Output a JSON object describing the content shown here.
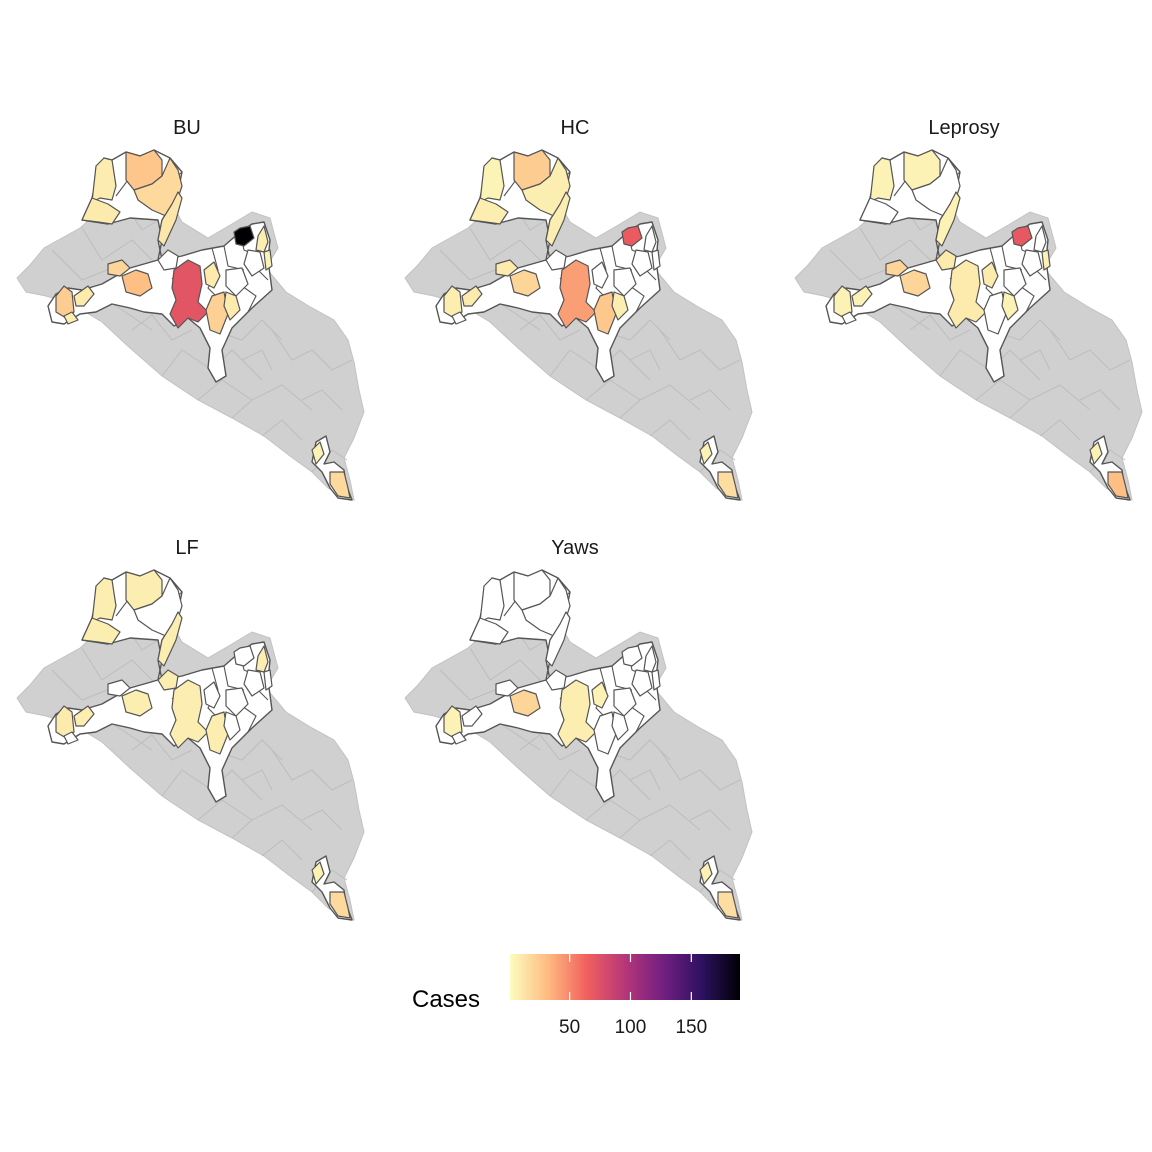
{
  "legend": {
    "title": "Cases",
    "ticks": [
      50,
      100,
      150
    ],
    "range": [
      1,
      190
    ],
    "palette": "magma-reversed",
    "colors": [
      "#fcfdbf",
      "#feba80",
      "#f1605d",
      "#b63679",
      "#721f81",
      "#2d1160",
      "#000004"
    ],
    "na_color": "#d0d0d0",
    "zero_color": "#ffffff",
    "border_color": "#555555"
  },
  "panels": [
    {
      "title": "BU",
      "districts": [
        {
          "id": "nw-top-a",
          "cases": 9
        },
        {
          "id": "nw-top-b",
          "cases": 27
        },
        {
          "id": "nw-top-c",
          "cases": 18
        },
        {
          "id": "nw-left",
          "cases": 10
        },
        {
          "id": "nw-strip",
          "cases": 12
        },
        {
          "id": "center-small",
          "cases": 0
        },
        {
          "id": "center-left",
          "cases": 30
        },
        {
          "id": "center-main",
          "cases": 72
        },
        {
          "id": "center-right",
          "cases": 10
        },
        {
          "id": "ne-top",
          "cases": 190
        },
        {
          "id": "ne-mid",
          "cases": 8
        },
        {
          "id": "ne-right",
          "cases": 5
        },
        {
          "id": "east-a",
          "cases": 0
        },
        {
          "id": "east-b",
          "cases": 0
        },
        {
          "id": "south-a",
          "cases": 22
        },
        {
          "id": "south-b",
          "cases": 10
        },
        {
          "id": "coast-a",
          "cases": 24
        },
        {
          "id": "coast-b",
          "cases": 10
        },
        {
          "id": "coast-c",
          "cases": 8
        },
        {
          "id": "west-a",
          "cases": 20
        },
        {
          "id": "se-a",
          "cases": 6
        },
        {
          "id": "se-b",
          "cases": 18
        }
      ]
    },
    {
      "title": "HC",
      "districts": [
        {
          "id": "nw-top-a",
          "cases": 5
        },
        {
          "id": "nw-top-b",
          "cases": 24
        },
        {
          "id": "nw-top-c",
          "cases": 8
        },
        {
          "id": "nw-left",
          "cases": 8
        },
        {
          "id": "nw-strip",
          "cases": 8
        },
        {
          "id": "center-small",
          "cases": 0
        },
        {
          "id": "center-left",
          "cases": 20
        },
        {
          "id": "center-main",
          "cases": 42
        },
        {
          "id": "center-right",
          "cases": 0
        },
        {
          "id": "ne-top",
          "cases": 68
        },
        {
          "id": "ne-mid",
          "cases": 0
        },
        {
          "id": "ne-right",
          "cases": 0
        },
        {
          "id": "east-a",
          "cases": 0
        },
        {
          "id": "east-b",
          "cases": 0
        },
        {
          "id": "south-a",
          "cases": 26
        },
        {
          "id": "south-b",
          "cases": 8
        },
        {
          "id": "coast-a",
          "cases": 8
        },
        {
          "id": "coast-b",
          "cases": 10
        },
        {
          "id": "coast-c",
          "cases": 0
        },
        {
          "id": "west-a",
          "cases": 10
        },
        {
          "id": "se-a",
          "cases": 6
        },
        {
          "id": "se-b",
          "cases": 16
        }
      ]
    },
    {
      "title": "Leprosy",
      "districts": [
        {
          "id": "nw-top-a",
          "cases": 6
        },
        {
          "id": "nw-top-b",
          "cases": 6
        },
        {
          "id": "nw-top-c",
          "cases": 0
        },
        {
          "id": "nw-left",
          "cases": 0
        },
        {
          "id": "nw-strip",
          "cases": 6
        },
        {
          "id": "center-small",
          "cases": 10
        },
        {
          "id": "center-left",
          "cases": 20
        },
        {
          "id": "center-main",
          "cases": 10
        },
        {
          "id": "center-right",
          "cases": 10
        },
        {
          "id": "ne-top",
          "cases": 70
        },
        {
          "id": "ne-mid",
          "cases": 0
        },
        {
          "id": "ne-right",
          "cases": 6
        },
        {
          "id": "east-a",
          "cases": 0
        },
        {
          "id": "east-b",
          "cases": 0
        },
        {
          "id": "south-a",
          "cases": 0
        },
        {
          "id": "south-b",
          "cases": 6
        },
        {
          "id": "coast-a",
          "cases": 6
        },
        {
          "id": "coast-b",
          "cases": 6
        },
        {
          "id": "coast-c",
          "cases": 0
        },
        {
          "id": "west-a",
          "cases": 20
        },
        {
          "id": "se-a",
          "cases": 6
        },
        {
          "id": "se-b",
          "cases": 30
        }
      ]
    },
    {
      "title": "LF",
      "districts": [
        {
          "id": "nw-top-a",
          "cases": 8
        },
        {
          "id": "nw-top-b",
          "cases": 8
        },
        {
          "id": "nw-top-c",
          "cases": 0
        },
        {
          "id": "nw-left",
          "cases": 8
        },
        {
          "id": "nw-strip",
          "cases": 8
        },
        {
          "id": "center-small",
          "cases": 8
        },
        {
          "id": "center-left",
          "cases": 8
        },
        {
          "id": "center-main",
          "cases": 8
        },
        {
          "id": "center-right",
          "cases": 0
        },
        {
          "id": "ne-top",
          "cases": 0
        },
        {
          "id": "ne-mid",
          "cases": 8
        },
        {
          "id": "ne-right",
          "cases": 0
        },
        {
          "id": "east-a",
          "cases": 0
        },
        {
          "id": "east-b",
          "cases": 0
        },
        {
          "id": "south-a",
          "cases": 8
        },
        {
          "id": "south-b",
          "cases": 0
        },
        {
          "id": "coast-a",
          "cases": 10
        },
        {
          "id": "coast-b",
          "cases": 8
        },
        {
          "id": "coast-c",
          "cases": 0
        },
        {
          "id": "west-a",
          "cases": 0
        },
        {
          "id": "se-a",
          "cases": 6
        },
        {
          "id": "se-b",
          "cases": 18
        }
      ]
    },
    {
      "title": "Yaws",
      "districts": [
        {
          "id": "nw-top-a",
          "cases": 0
        },
        {
          "id": "nw-top-b",
          "cases": 0
        },
        {
          "id": "nw-top-c",
          "cases": 0
        },
        {
          "id": "nw-left",
          "cases": 0
        },
        {
          "id": "nw-strip",
          "cases": 0
        },
        {
          "id": "center-small",
          "cases": 0
        },
        {
          "id": "center-left",
          "cases": 20
        },
        {
          "id": "center-main",
          "cases": 8
        },
        {
          "id": "center-right",
          "cases": 6
        },
        {
          "id": "ne-top",
          "cases": 0
        },
        {
          "id": "ne-mid",
          "cases": 0
        },
        {
          "id": "ne-right",
          "cases": 0
        },
        {
          "id": "east-a",
          "cases": 0
        },
        {
          "id": "east-b",
          "cases": 0
        },
        {
          "id": "south-a",
          "cases": 0
        },
        {
          "id": "south-b",
          "cases": 0
        },
        {
          "id": "coast-a",
          "cases": 6
        },
        {
          "id": "coast-b",
          "cases": 0
        },
        {
          "id": "coast-c",
          "cases": 0
        },
        {
          "id": "west-a",
          "cases": 0
        },
        {
          "id": "se-a",
          "cases": 6
        },
        {
          "id": "se-b",
          "cases": 16
        }
      ]
    }
  ]
}
